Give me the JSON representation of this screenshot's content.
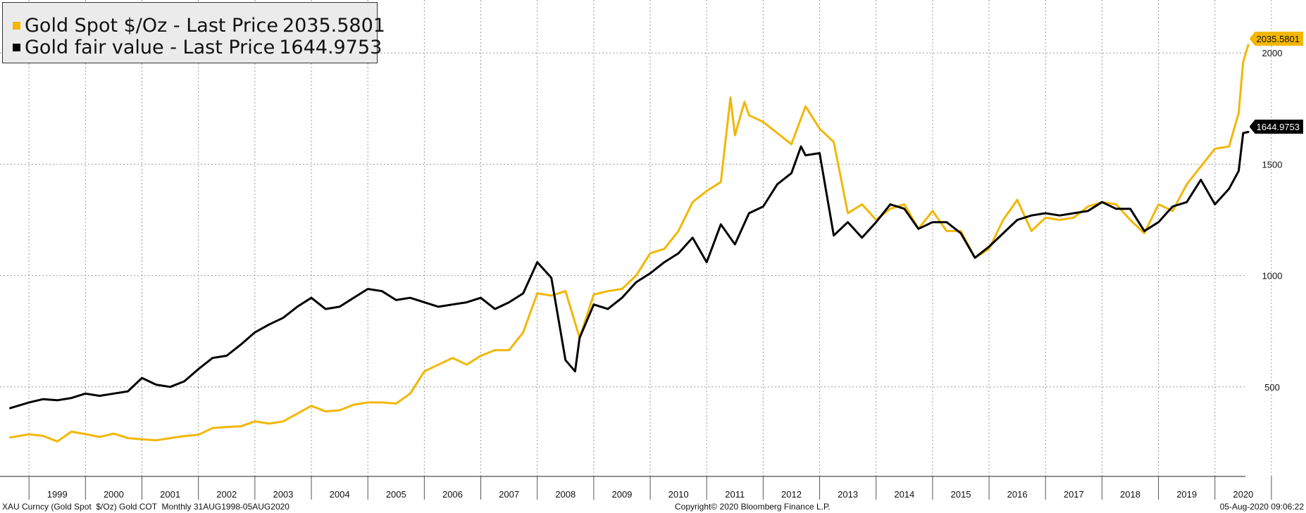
{
  "legend": [
    {
      "label": "Gold Spot $/Oz - Last Price",
      "value": "2035.5801",
      "color": "#f2b705"
    },
    {
      "label": "Gold fair value - Last Price",
      "value": "1644.9753",
      "color": "#000000"
    }
  ],
  "price_tags": {
    "gold_spot": "2035.5801",
    "fair_value": "1644.9753"
  },
  "footer": {
    "left": "XAU Curncy (Gold Spot  $/Oz) Gold COT  Monthly 31AUG1998-05AUG2020",
    "center": "Copyright© 2020 Bloomberg Finance L.P.",
    "right": "05-Aug-2020 09:06:22"
  },
  "chart_data": {
    "type": "line",
    "title": "",
    "xlabel": "",
    "ylabel": "",
    "ylim": [
      0,
      2100
    ],
    "y_ticks": [
      500,
      1000,
      1500,
      2000
    ],
    "x_ticks": [
      "1999",
      "2000",
      "2001",
      "2002",
      "2003",
      "2004",
      "2005",
      "2006",
      "2007",
      "2008",
      "2009",
      "2010",
      "2011",
      "2012",
      "2013",
      "2014",
      "2015",
      "2016",
      "2017",
      "2018",
      "2019",
      "2020"
    ],
    "grid": true,
    "legend_position": "top-left",
    "series": [
      {
        "name": "Gold Spot $/Oz",
        "color": "#f2b705",
        "x": [
          1998.667,
          1999.0,
          1999.25,
          1999.5,
          1999.75,
          2000.0,
          2000.25,
          2000.5,
          2000.75,
          2001.0,
          2001.25,
          2001.5,
          2001.75,
          2002.0,
          2002.25,
          2002.5,
          2002.75,
          2003.0,
          2003.25,
          2003.5,
          2003.75,
          2004.0,
          2004.25,
          2004.5,
          2004.75,
          2005.0,
          2005.25,
          2005.5,
          2005.75,
          2006.0,
          2006.25,
          2006.5,
          2006.75,
          2007.0,
          2007.25,
          2007.5,
          2007.75,
          2008.0,
          2008.25,
          2008.5,
          2008.75,
          2009.0,
          2009.25,
          2009.5,
          2009.75,
          2010.0,
          2010.25,
          2010.5,
          2010.75,
          2011.0,
          2011.25,
          2011.42,
          2011.5,
          2011.67,
          2011.75,
          2012.0,
          2012.25,
          2012.5,
          2012.75,
          2013.0,
          2013.25,
          2013.5,
          2013.75,
          2014.0,
          2014.25,
          2014.5,
          2014.75,
          2015.0,
          2015.25,
          2015.5,
          2015.75,
          2016.0,
          2016.25,
          2016.5,
          2016.75,
          2017.0,
          2017.25,
          2017.5,
          2017.75,
          2018.0,
          2018.25,
          2018.5,
          2018.75,
          2019.0,
          2019.25,
          2019.5,
          2019.75,
          2020.0,
          2020.25,
          2020.42,
          2020.5,
          2020.59
        ],
        "y": [
          273,
          287,
          280,
          255,
          299,
          288,
          275,
          290,
          270,
          265,
          260,
          270,
          279,
          285,
          315,
          320,
          323,
          345,
          335,
          345,
          380,
          415,
          390,
          395,
          420,
          430,
          430,
          425,
          470,
          570,
          600,
          630,
          600,
          640,
          665,
          665,
          745,
          920,
          910,
          930,
          720,
          915,
          930,
          940,
          1000,
          1100,
          1120,
          1200,
          1330,
          1380,
          1420,
          1800,
          1630,
          1780,
          1720,
          1690,
          1640,
          1590,
          1760,
          1660,
          1600,
          1280,
          1320,
          1250,
          1300,
          1320,
          1210,
          1290,
          1200,
          1200,
          1080,
          1120,
          1250,
          1340,
          1200,
          1260,
          1250,
          1260,
          1310,
          1330,
          1320,
          1250,
          1190,
          1320,
          1290,
          1410,
          1490,
          1570,
          1580,
          1730,
          1960,
          2035.58
        ]
      },
      {
        "name": "Gold fair value",
        "color": "#000000",
        "x": [
          1998.667,
          1999.0,
          1999.25,
          1999.5,
          1999.75,
          2000.0,
          2000.25,
          2000.5,
          2000.75,
          2001.0,
          2001.25,
          2001.5,
          2001.75,
          2002.0,
          2002.25,
          2002.5,
          2002.75,
          2003.0,
          2003.25,
          2003.5,
          2003.75,
          2004.0,
          2004.25,
          2004.5,
          2004.75,
          2005.0,
          2005.25,
          2005.5,
          2005.75,
          2006.0,
          2006.25,
          2006.5,
          2006.75,
          2007.0,
          2007.25,
          2007.5,
          2007.75,
          2008.0,
          2008.25,
          2008.5,
          2008.67,
          2008.75,
          2009.0,
          2009.25,
          2009.5,
          2009.75,
          2010.0,
          2010.25,
          2010.5,
          2010.75,
          2011.0,
          2011.25,
          2011.5,
          2011.75,
          2012.0,
          2012.25,
          2012.5,
          2012.67,
          2012.75,
          2013.0,
          2013.25,
          2013.5,
          2013.75,
          2014.0,
          2014.25,
          2014.5,
          2014.75,
          2015.0,
          2015.25,
          2015.5,
          2015.75,
          2016.0,
          2016.25,
          2016.5,
          2016.75,
          2017.0,
          2017.25,
          2017.5,
          2017.75,
          2018.0,
          2018.25,
          2018.5,
          2018.75,
          2019.0,
          2019.25,
          2019.5,
          2019.75,
          2020.0,
          2020.25,
          2020.42,
          2020.5,
          2020.59
        ],
        "y": [
          405,
          430,
          445,
          440,
          450,
          470,
          460,
          470,
          480,
          540,
          510,
          500,
          525,
          580,
          630,
          640,
          690,
          745,
          780,
          810,
          860,
          900,
          850,
          860,
          900,
          940,
          930,
          890,
          900,
          880,
          860,
          870,
          880,
          900,
          850,
          880,
          920,
          1060,
          990,
          620,
          570,
          720,
          870,
          850,
          900,
          970,
          1010,
          1060,
          1100,
          1170,
          1060,
          1230,
          1140,
          1280,
          1310,
          1410,
          1460,
          1580,
          1540,
          1550,
          1180,
          1240,
          1170,
          1240,
          1320,
          1300,
          1210,
          1240,
          1240,
          1190,
          1080,
          1130,
          1190,
          1250,
          1270,
          1280,
          1270,
          1280,
          1290,
          1330,
          1300,
          1300,
          1200,
          1240,
          1310,
          1330,
          1430,
          1320,
          1390,
          1470,
          1640,
          1644.98
        ]
      }
    ]
  }
}
